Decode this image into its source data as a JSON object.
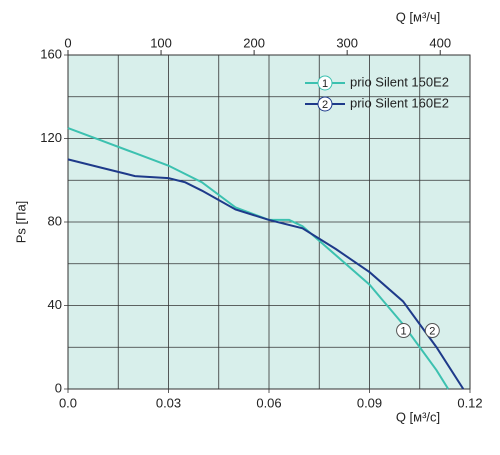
{
  "chart_data": {
    "type": "line",
    "xlabel": "Q [м³/с]",
    "x2label": "Q [м³/ч]",
    "ylabel": "Ps [Па]",
    "xlim": [
      0,
      0.12
    ],
    "xticks": [
      {
        "value": 0,
        "label": "0.0"
      },
      0.03,
      0.06,
      0.09,
      0.12
    ],
    "xminor": [
      0.015,
      0.045,
      0.075,
      0.105
    ],
    "x2lim": [
      0,
      432
    ],
    "x2ticks": [
      0,
      100,
      200,
      300,
      400
    ],
    "ylim": [
      0,
      160
    ],
    "yticks": [
      0,
      40,
      80,
      120,
      160
    ],
    "yminor": [
      20,
      60,
      100,
      140
    ],
    "grid": true,
    "legend": "upper right",
    "series": [
      {
        "name": "prio Silent 150E2",
        "marker": "1",
        "color": "#3cc1b0",
        "x": [
          0,
          0.01,
          0.02,
          0.03,
          0.04,
          0.05,
          0.06,
          0.066,
          0.07,
          0.08,
          0.09,
          0.1,
          0.11,
          0.1135
        ],
        "values": [
          125,
          119,
          113,
          107,
          99,
          87,
          81,
          81,
          78,
          64,
          50,
          31,
          9,
          0
        ]
      },
      {
        "name": "prio Silent 160E2",
        "marker": "2",
        "color": "#1e3a8a",
        "x": [
          0,
          0.01,
          0.02,
          0.03,
          0.035,
          0.04,
          0.05,
          0.06,
          0.07,
          0.08,
          0.09,
          0.1,
          0.11,
          0.118
        ],
        "values": [
          110,
          106,
          102,
          101,
          99,
          95,
          86,
          81,
          77,
          67,
          56,
          42,
          20,
          0
        ]
      }
    ]
  }
}
